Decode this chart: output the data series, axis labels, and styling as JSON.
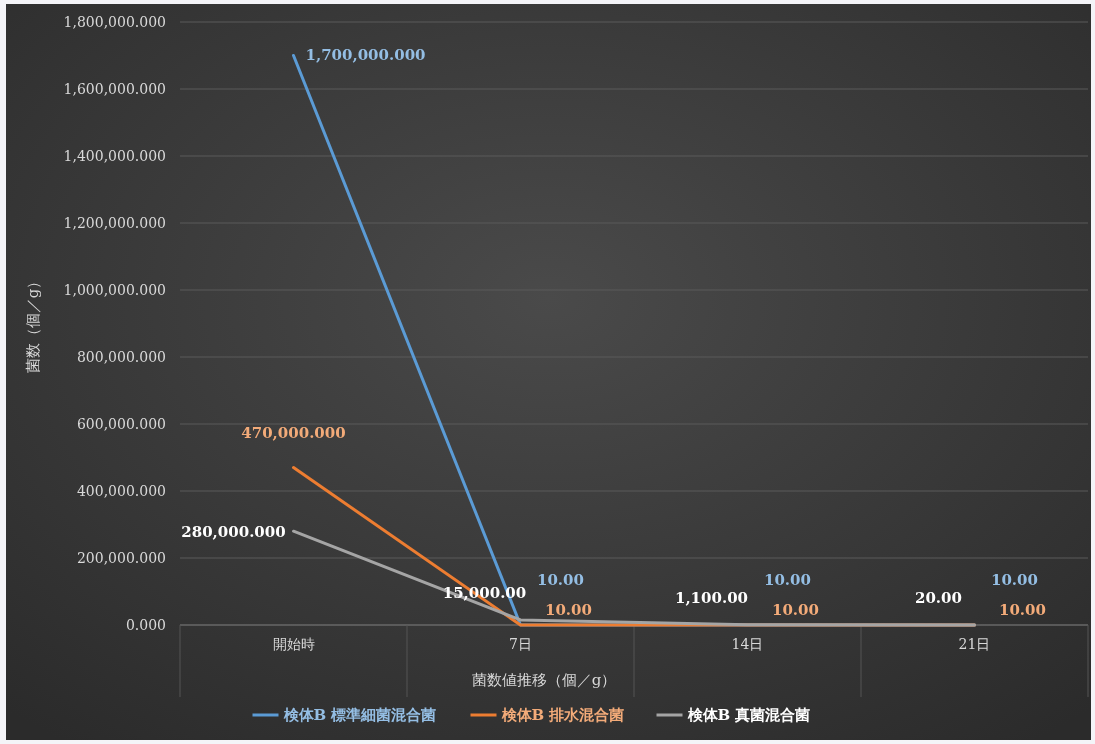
{
  "chart_data": {
    "type": "line",
    "xlabel": "菌数値推移（個／g）",
    "ylabel": "菌数（個／g）",
    "categories": [
      "開始時",
      "7日",
      "14日",
      "21日"
    ],
    "ylim": [
      0,
      1800000
    ],
    "yticks": [
      {
        "value": 0,
        "label": "0.000"
      },
      {
        "value": 200000,
        "label": "200,000.000"
      },
      {
        "value": 400000,
        "label": "400,000.000"
      },
      {
        "value": 600000,
        "label": "600,000.000"
      },
      {
        "value": 800000,
        "label": "800,000.000"
      },
      {
        "value": 1000000,
        "label": "1,000,000.000"
      },
      {
        "value": 1200000,
        "label": "1,200,000.000"
      },
      {
        "value": 1400000,
        "label": "1,400,000.000"
      },
      {
        "value": 1600000,
        "label": "1,600,000.000"
      },
      {
        "value": 1800000,
        "label": "1,800,000.000"
      }
    ],
    "series": [
      {
        "name": "検体B 標準細菌混合菌",
        "color": "#5b9bd5",
        "values": [
          1700000,
          10,
          10,
          10
        ],
        "value_labels": [
          "1,700,000.000",
          "10.00",
          "10.00",
          "10.00"
        ]
      },
      {
        "name": "検体B 排水混合菌",
        "color": "#ed7d31",
        "values": [
          470000,
          10,
          10,
          10
        ],
        "value_labels": [
          "470,000.000",
          "10.00",
          "10.00",
          "10.00"
        ]
      },
      {
        "name": "検体B 真菌混合菌",
        "color": "#a5a5a5",
        "values": [
          280000,
          15000,
          1100,
          20
        ],
        "value_labels": [
          "280,000.000",
          "15,000.00",
          "1,100.00",
          "20.00"
        ]
      }
    ],
    "grid": "y",
    "legend": "bottom",
    "marker": "none",
    "line_style": "solid"
  }
}
